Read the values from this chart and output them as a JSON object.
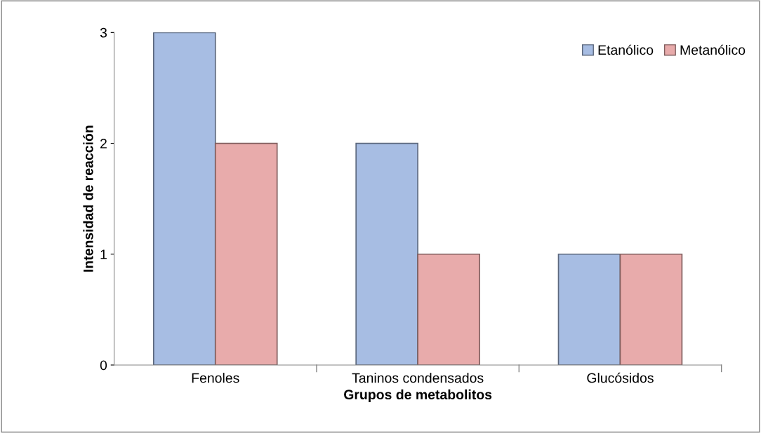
{
  "chart_data": {
    "type": "bar",
    "xlabel": "Grupos de metabolitos",
    "ylabel": "Intensidad de reacción",
    "categories": [
      "Fenoles",
      "Taninos condensados",
      "Glucósidos"
    ],
    "series": [
      {
        "name": "Etanólico",
        "color": "#a7bde3",
        "values": [
          3,
          2,
          1
        ]
      },
      {
        "name": "Metanólico",
        "color": "#e8abab",
        "values": [
          2,
          1,
          1
        ]
      }
    ],
    "ylim": [
      0,
      3
    ],
    "yticks": [
      0,
      1,
      2,
      3
    ],
    "grid": false,
    "legend": "top right"
  }
}
